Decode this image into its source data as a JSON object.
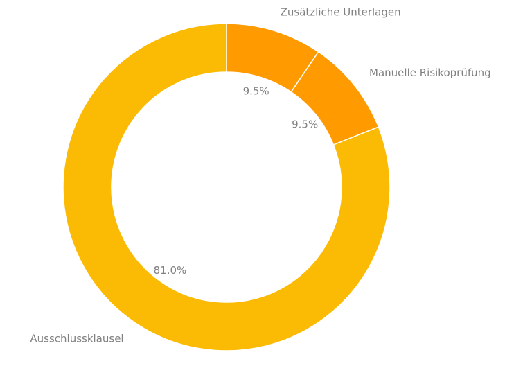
{
  "chart_data": {
    "type": "pie",
    "donut": true,
    "title": "",
    "slices": [
      {
        "label": "Zusätzliche Unterlagen",
        "value": 9.5,
        "pct_text": "9.5%",
        "color": "#ff9b00"
      },
      {
        "label": "Manuelle Risikoprüfung",
        "value": 9.5,
        "pct_text": "9.5%",
        "color": "#ff9b00"
      },
      {
        "label": "Ausschlussklausel",
        "value": 81.0,
        "pct_text": "81.0%",
        "color": "#fbbb05"
      }
    ],
    "start": "top",
    "direction": "clockwise",
    "legend": "none"
  }
}
